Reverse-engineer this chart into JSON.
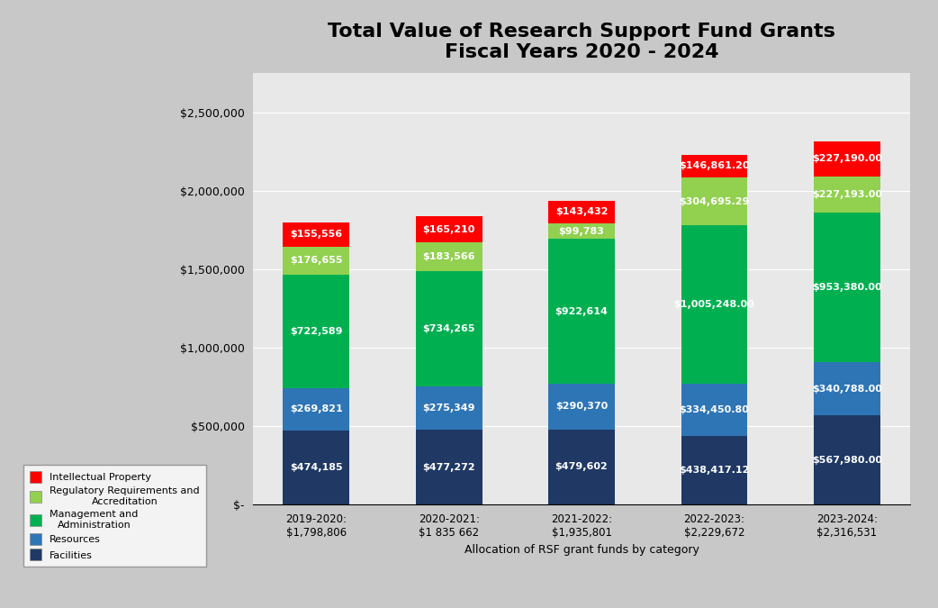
{
  "title": "Total Value of Research Support Fund Grants\nFiscal Years 2020 - 2024",
  "xlabel": "Allocation of RSF grant funds by category",
  "categories": [
    "2019-2020:\n$1,798,806",
    "2020-2021:\n$1 835 662",
    "2021-2022:\n$1,935,801",
    "2022-2023:\n$2,229,672",
    "2023-2024:\n$2,316,531"
  ],
  "series_order": [
    "Facilities",
    "Resources",
    "Management and Administration",
    "Regulatory Requirements and Accreditation",
    "Intellectual Property"
  ],
  "series": {
    "Facilities": [
      474185,
      477272,
      479602,
      438417.12,
      567980.0
    ],
    "Resources": [
      269821,
      275349,
      290370,
      334450.8,
      340788.0
    ],
    "Management and Administration": [
      722589,
      734265,
      922614,
      1005248.0,
      953380.0
    ],
    "Regulatory Requirements and Accreditation": [
      176655,
      183566,
      99783,
      304695.29,
      227193.0
    ],
    "Intellectual Property": [
      155556,
      165210,
      143432,
      146861.2,
      227190.0
    ]
  },
  "bar_labels": {
    "Facilities": [
      "$474,185",
      "$477,272",
      "$479,602",
      "$438,417.12",
      "$567,980.00"
    ],
    "Resources": [
      "$269,821",
      "$275,349",
      "$290,370",
      "$334,450.80",
      "$340,788.00"
    ],
    "Management and Administration": [
      "$722,589",
      "$734,265",
      "$922,614",
      "$1,005,248.00",
      "$953,380.00"
    ],
    "Regulatory Requirements and Accreditation": [
      "$176,655",
      "$183,566",
      "$99,783",
      "$304,695.29",
      "$227,193.00"
    ],
    "Intellectual Property": [
      "$155,556",
      "$165,210",
      "$143,432",
      "$146,861.20",
      "$227,190.00"
    ]
  },
  "colors": {
    "Facilities": "#1F3864",
    "Resources": "#2E75B6",
    "Management and Administration": "#00B050",
    "Regulatory Requirements and Accreditation": "#92D050",
    "Intellectual Property": "#FF0000"
  },
  "legend_labels": [
    "Intellectual Property",
    "Regulatory Requirements and\nAccreditation",
    "Management and\nAdministration",
    "Resources",
    "Facilities"
  ],
  "legend_colors": [
    "#FF0000",
    "#92D050",
    "#00B050",
    "#2E75B6",
    "#1F3864"
  ],
  "ylim": [
    0,
    2750000
  ],
  "yticks": [
    0,
    500000,
    1000000,
    1500000,
    2000000,
    2500000
  ],
  "ytick_labels": [
    "$-",
    "$500,000",
    "$1,000,000",
    "$1,500,000",
    "$2,000,000",
    "$2,500,000"
  ],
  "background_color": "#C8C8C8",
  "plot_background_color": "#E8E8E8",
  "bar_width": 0.5,
  "title_fontsize": 16,
  "label_fontsize": 8,
  "axis_label_fontsize": 9
}
